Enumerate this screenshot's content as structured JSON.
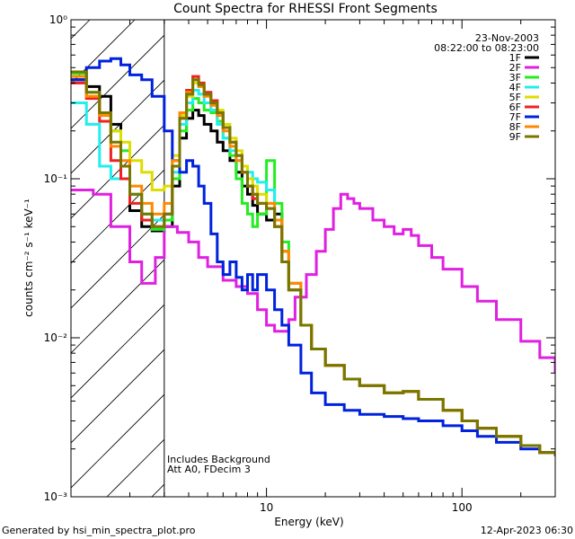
{
  "chart_data": {
    "type": "line",
    "title": "Count Spectra for RHESSI Front Segments",
    "xlabel": "Energy (keV)",
    "ylabel": "counts cm⁻² s⁻¹ keV⁻¹",
    "xscale": "log",
    "yscale": "log",
    "xlim": [
      1,
      300
    ],
    "ylim": [
      0.001,
      1
    ],
    "x_tick_labels": [
      "10",
      "100"
    ],
    "y_tick_labels": [
      "10⁰",
      "10⁻¹",
      "10⁻²",
      "10⁻³"
    ],
    "date": "23-Nov-2003",
    "time_range": "08:22:00 to 08:23:00",
    "attenuator_shade_max_kev": 3,
    "annotations": [
      "Includes Background",
      "Att A0, FDecim 3"
    ],
    "legend_position": "top-right",
    "series": [
      {
        "name": "1F",
        "color": "#000000",
        "x": [
          1.0,
          1.2,
          1.4,
          1.6,
          1.8,
          2.0,
          2.3,
          2.6,
          3.0,
          3.3,
          3.6,
          3.9,
          4.2,
          4.5,
          4.8,
          5.2,
          5.6,
          6.0,
          6.5,
          7.0,
          7.5,
          8.0,
          8.5,
          9.0,
          10.0,
          11.0,
          12.0,
          13.0,
          15.0,
          17.0,
          20.0,
          25.0,
          30.0,
          40.0,
          50.0,
          60.0,
          80.0,
          100.0,
          120.0,
          150.0,
          200.0,
          250.0,
          300.0
        ],
        "y": [
          0.42,
          0.38,
          0.33,
          0.22,
          0.12,
          0.063,
          0.05,
          0.047,
          0.05,
          0.09,
          0.18,
          0.24,
          0.27,
          0.25,
          0.22,
          0.2,
          0.17,
          0.15,
          0.13,
          0.11,
          0.09,
          0.08,
          0.068,
          0.06,
          0.055,
          0.06,
          0.035,
          0.022,
          0.012,
          0.0085,
          0.0067,
          0.0055,
          0.005,
          0.0045,
          0.0046,
          0.0041,
          0.0035,
          0.003,
          0.0027,
          0.0024,
          0.0021,
          0.0019,
          0.0018
        ]
      },
      {
        "name": "2F",
        "color": "#e020e0",
        "x": [
          1.0,
          1.3,
          1.6,
          2.0,
          2.3,
          2.7,
          3.0,
          3.5,
          4.0,
          4.5,
          5.0,
          6.0,
          7.0,
          8.0,
          9.0,
          10.0,
          11.0,
          12.0,
          13.0,
          14.0,
          16.0,
          18.0,
          20.0,
          22.0,
          24.0,
          26.0,
          28.0,
          30.0,
          35.0,
          40.0,
          45.0,
          50.0,
          55.0,
          60.0,
          70.0,
          80.0,
          100.0,
          120.0,
          150.0,
          200.0,
          250.0,
          300.0
        ],
        "y": [
          0.085,
          0.08,
          0.05,
          0.03,
          0.022,
          0.032,
          0.05,
          0.046,
          0.04,
          0.032,
          0.028,
          0.023,
          0.021,
          0.019,
          0.015,
          0.012,
          0.011,
          0.011,
          0.013,
          0.018,
          0.025,
          0.035,
          0.048,
          0.065,
          0.08,
          0.075,
          0.07,
          0.065,
          0.055,
          0.05,
          0.045,
          0.048,
          0.044,
          0.038,
          0.032,
          0.027,
          0.021,
          0.017,
          0.013,
          0.0095,
          0.0075,
          0.006
        ]
      },
      {
        "name": "3F",
        "color": "#22ee22",
        "x": [
          1.0,
          1.2,
          1.4,
          1.6,
          1.8,
          2.0,
          2.3,
          2.6,
          3.0,
          3.3,
          3.6,
          3.9,
          4.2,
          4.5,
          4.8,
          5.2,
          5.6,
          6.0,
          6.5,
          7.0,
          7.5,
          8.0,
          8.5,
          9.0,
          10.0,
          11.0,
          12.0,
          13.0,
          15.0,
          17.0,
          20.0,
          25.0,
          30.0,
          40.0,
          50.0,
          60.0,
          80.0,
          100.0,
          120.0,
          150.0,
          200.0,
          250.0,
          300.0
        ],
        "y": [
          0.46,
          0.35,
          0.26,
          0.2,
          0.15,
          0.08,
          0.06,
          0.048,
          0.055,
          0.1,
          0.2,
          0.27,
          0.32,
          0.3,
          0.27,
          0.26,
          0.23,
          0.18,
          0.14,
          0.1,
          0.07,
          0.06,
          0.05,
          0.06,
          0.13,
          0.07,
          0.04,
          0.02,
          0.012,
          0.0085,
          0.0067,
          0.0055,
          0.005,
          0.0045,
          0.0046,
          0.0041,
          0.0035,
          0.003,
          0.0027,
          0.0024,
          0.0021,
          0.0019,
          0.0018
        ]
      },
      {
        "name": "4F",
        "color": "#22eeee",
        "x": [
          1.0,
          1.2,
          1.4,
          1.6,
          1.8,
          2.0,
          2.3,
          2.6,
          3.0,
          3.3,
          3.6,
          3.9,
          4.2,
          4.5,
          4.8,
          5.2,
          5.6,
          6.0,
          6.5,
          7.0,
          7.5,
          8.0,
          8.5,
          9.0,
          10.0,
          11.0,
          12.0,
          13.0,
          15.0,
          17.0,
          20.0,
          25.0,
          30.0,
          40.0,
          50.0,
          60.0,
          80.0,
          100.0,
          120.0,
          150.0,
          200.0,
          250.0,
          300.0
        ],
        "y": [
          0.3,
          0.22,
          0.12,
          0.1,
          0.1,
          0.08,
          0.06,
          0.055,
          0.06,
          0.11,
          0.22,
          0.3,
          0.36,
          0.34,
          0.3,
          0.27,
          0.22,
          0.18,
          0.15,
          0.13,
          0.12,
          0.11,
          0.1,
          0.095,
          0.085,
          0.05,
          0.03,
          0.02,
          0.012,
          0.0085,
          0.0067,
          0.0055,
          0.005,
          0.0045,
          0.0046,
          0.0041,
          0.0035,
          0.003,
          0.0027,
          0.0024,
          0.0021,
          0.0019,
          0.0018
        ]
      },
      {
        "name": "5F",
        "color": "#dddd00",
        "x": [
          1.0,
          1.2,
          1.4,
          1.6,
          1.8,
          2.0,
          2.3,
          2.6,
          3.0,
          3.3,
          3.6,
          3.9,
          4.2,
          4.5,
          4.8,
          5.2,
          5.6,
          6.0,
          6.5,
          7.0,
          7.5,
          8.0,
          8.5,
          9.0,
          10.0,
          11.0,
          12.0,
          13.0,
          15.0,
          17.0,
          20.0,
          25.0,
          30.0,
          40.0,
          50.0,
          60.0,
          80.0,
          100.0,
          120.0,
          150.0,
          200.0,
          250.0,
          300.0
        ],
        "y": [
          0.4,
          0.33,
          0.26,
          0.2,
          0.17,
          0.13,
          0.11,
          0.085,
          0.09,
          0.14,
          0.25,
          0.33,
          0.4,
          0.38,
          0.34,
          0.31,
          0.27,
          0.22,
          0.18,
          0.15,
          0.12,
          0.1,
          0.09,
          0.08,
          0.07,
          0.05,
          0.035,
          0.022,
          0.012,
          0.0085,
          0.0067,
          0.0055,
          0.005,
          0.0045,
          0.0046,
          0.0041,
          0.0035,
          0.003,
          0.0027,
          0.0024,
          0.0021,
          0.0019,
          0.0018
        ]
      },
      {
        "name": "6F",
        "color": "#ee2222",
        "x": [
          1.0,
          1.2,
          1.4,
          1.6,
          1.8,
          2.0,
          2.3,
          2.6,
          3.0,
          3.3,
          3.6,
          3.9,
          4.2,
          4.5,
          4.8,
          5.2,
          5.6,
          6.0,
          6.5,
          7.0,
          7.5,
          8.0,
          8.5,
          9.0,
          10.0,
          11.0,
          12.0,
          13.0,
          15.0,
          17.0,
          20.0,
          25.0,
          30.0,
          40.0,
          50.0,
          60.0,
          80.0,
          100.0,
          120.0,
          150.0,
          200.0,
          250.0,
          300.0
        ],
        "y": [
          0.4,
          0.32,
          0.23,
          0.13,
          0.1,
          0.07,
          0.055,
          0.05,
          0.06,
          0.12,
          0.24,
          0.36,
          0.44,
          0.4,
          0.35,
          0.31,
          0.26,
          0.21,
          0.17,
          0.14,
          0.11,
          0.09,
          0.075,
          0.07,
          0.065,
          0.05,
          0.03,
          0.02,
          0.012,
          0.0085,
          0.0067,
          0.0055,
          0.005,
          0.0045,
          0.0046,
          0.0041,
          0.0035,
          0.003,
          0.0027,
          0.0024,
          0.0021,
          0.0019,
          0.0018
        ]
      },
      {
        "name": "7F",
        "color": "#0022dd",
        "x": [
          1.0,
          1.2,
          1.4,
          1.6,
          1.8,
          2.0,
          2.3,
          2.6,
          3.0,
          3.3,
          3.6,
          3.9,
          4.2,
          4.5,
          4.8,
          5.2,
          5.6,
          6.0,
          6.5,
          7.0,
          7.5,
          8.0,
          8.5,
          9.0,
          10.0,
          11.0,
          12.0,
          13.0,
          15.0,
          17.0,
          20.0,
          25.0,
          30.0,
          40.0,
          50.0,
          60.0,
          80.0,
          100.0,
          120.0,
          150.0,
          200.0,
          250.0,
          300.0
        ],
        "y": [
          0.42,
          0.5,
          0.55,
          0.57,
          0.52,
          0.45,
          0.42,
          0.33,
          0.2,
          0.13,
          0.11,
          0.13,
          0.12,
          0.09,
          0.07,
          0.045,
          0.03,
          0.025,
          0.03,
          0.024,
          0.02,
          0.025,
          0.02,
          0.025,
          0.02,
          0.015,
          0.012,
          0.009,
          0.006,
          0.0045,
          0.0038,
          0.0035,
          0.0033,
          0.0032,
          0.0031,
          0.003,
          0.0028,
          0.0026,
          0.0024,
          0.0022,
          0.002,
          0.0019,
          0.0018
        ]
      },
      {
        "name": "8F",
        "color": "#ff8800",
        "x": [
          1.0,
          1.2,
          1.4,
          1.6,
          1.8,
          2.0,
          2.3,
          2.6,
          3.0,
          3.3,
          3.6,
          3.9,
          4.2,
          4.5,
          4.8,
          5.2,
          5.6,
          6.0,
          6.5,
          7.0,
          7.5,
          8.0,
          8.5,
          9.0,
          10.0,
          11.0,
          12.0,
          13.0,
          15.0,
          17.0,
          20.0,
          25.0,
          30.0,
          40.0,
          50.0,
          60.0,
          80.0,
          100.0,
          120.0,
          150.0,
          200.0,
          250.0,
          300.0
        ],
        "y": [
          0.44,
          0.33,
          0.25,
          0.16,
          0.13,
          0.09,
          0.07,
          0.06,
          0.07,
          0.13,
          0.26,
          0.35,
          0.42,
          0.38,
          0.33,
          0.29,
          0.25,
          0.2,
          0.16,
          0.13,
          0.11,
          0.09,
          0.08,
          0.07,
          0.07,
          0.055,
          0.035,
          0.022,
          0.012,
          0.0085,
          0.0067,
          0.0055,
          0.005,
          0.0045,
          0.0046,
          0.0041,
          0.0035,
          0.003,
          0.0027,
          0.0024,
          0.0021,
          0.0019,
          0.0018
        ]
      },
      {
        "name": "9F",
        "color": "#777700",
        "x": [
          1.0,
          1.2,
          1.4,
          1.6,
          1.8,
          2.0,
          2.3,
          2.6,
          3.0,
          3.3,
          3.6,
          3.9,
          4.2,
          4.5,
          4.8,
          5.2,
          5.6,
          6.0,
          6.5,
          7.0,
          7.5,
          8.0,
          8.5,
          9.0,
          10.0,
          11.0,
          12.0,
          13.0,
          15.0,
          17.0,
          20.0,
          25.0,
          30.0,
          40.0,
          50.0,
          60.0,
          80.0,
          100.0,
          120.0,
          150.0,
          200.0,
          250.0,
          300.0
        ],
        "y": [
          0.47,
          0.35,
          0.26,
          0.17,
          0.12,
          0.08,
          0.06,
          0.05,
          0.06,
          0.12,
          0.24,
          0.34,
          0.42,
          0.39,
          0.34,
          0.3,
          0.26,
          0.21,
          0.17,
          0.14,
          0.11,
          0.09,
          0.08,
          0.07,
          0.065,
          0.05,
          0.03,
          0.02,
          0.012,
          0.0085,
          0.0067,
          0.0055,
          0.005,
          0.0045,
          0.0046,
          0.0041,
          0.0035,
          0.003,
          0.0027,
          0.0024,
          0.0021,
          0.0019,
          0.0018
        ]
      }
    ]
  },
  "footer": {
    "generated_by": "Generated by hsi_min_spectra_plot.pro",
    "timestamp": "12-Apr-2023 06:30"
  }
}
